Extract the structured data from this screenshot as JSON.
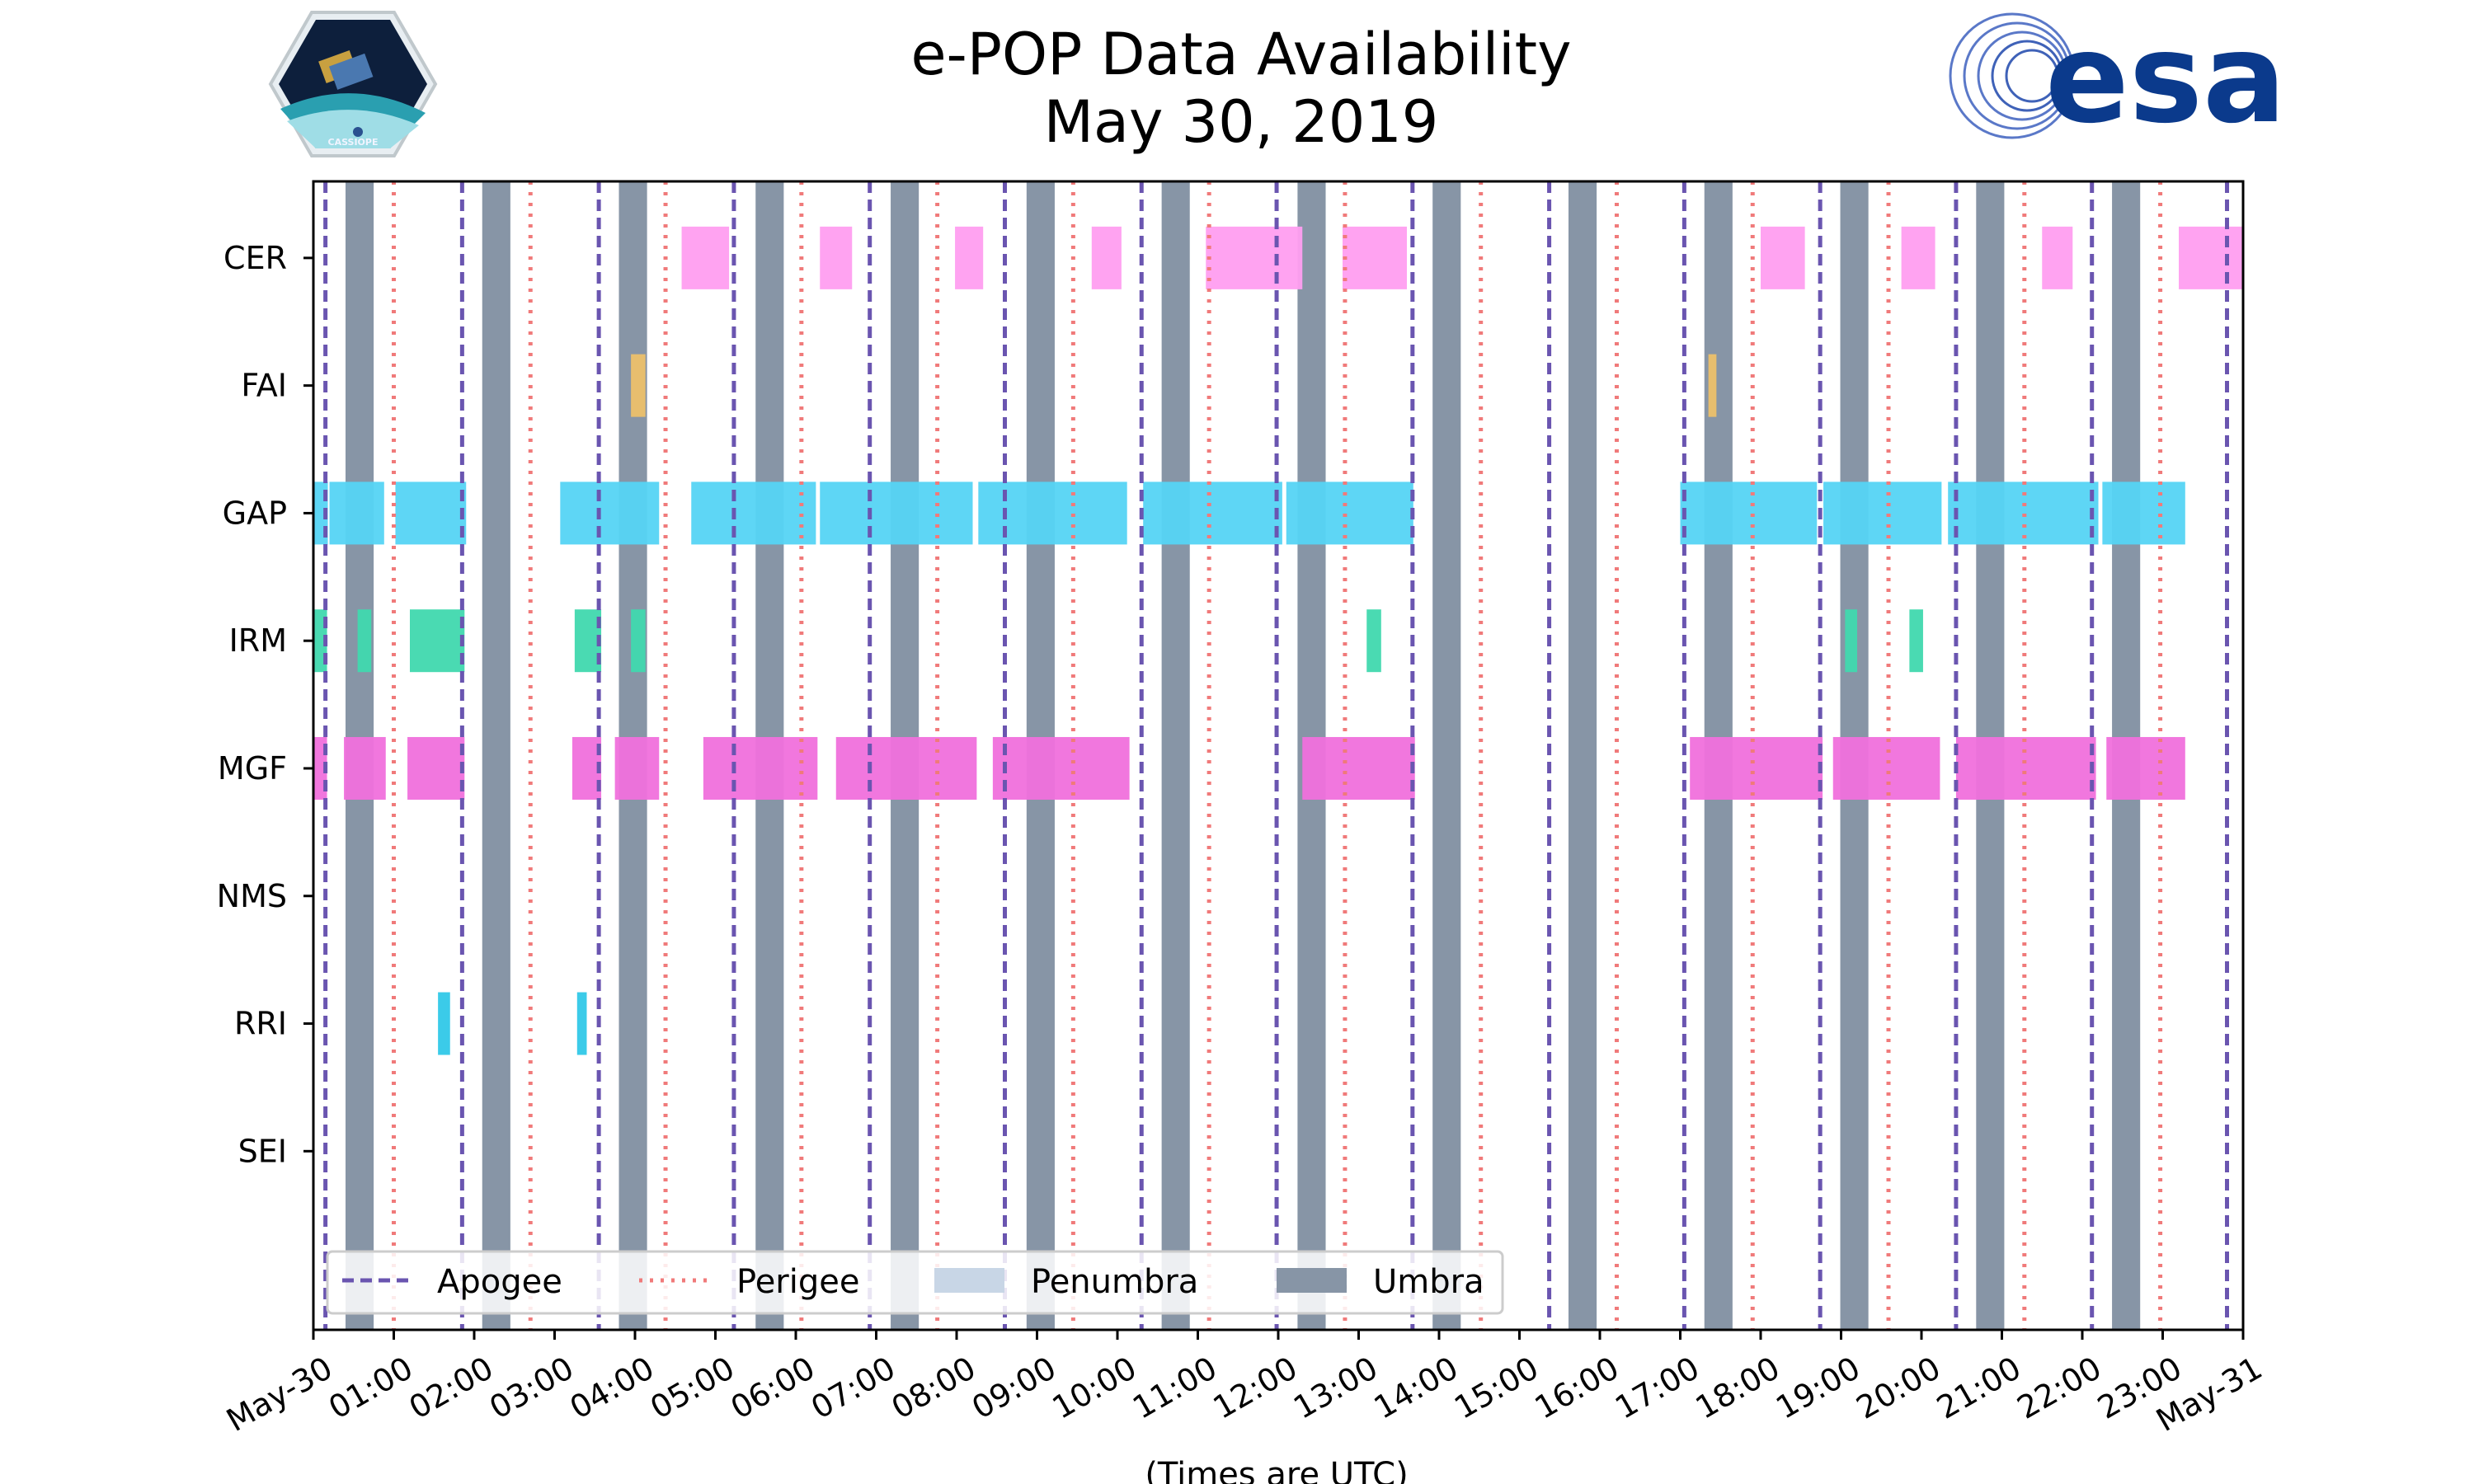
{
  "title": "e-POP Data Availability",
  "subtitle": "May 30, 2019",
  "logos": {
    "cassiope_text": "CASSIOPE",
    "esa_text": "esa"
  },
  "colors": {
    "apogee": "#6a55b0",
    "perigee": "#f07a7a",
    "penumbra": "#c8d6e6",
    "umbra": "#8795a6",
    "CER": "#ff9ef0",
    "FAI": "#ecc06a",
    "GAP": "#55d4f4",
    "IRM": "#40d8ae",
    "MGF": "#f070dc",
    "NMS": "#888888",
    "RRI": "#30c8e8",
    "SEI": "#888888",
    "esa_blue": "#0b3a8c",
    "esa_light": "#4a6fc0"
  },
  "chart_data": {
    "type": "timeline",
    "title": "e-POP Data Availability",
    "subtitle": "May 30, 2019",
    "xlabel": "(Times are UTC)",
    "ylabel": "",
    "xlim": [
      0,
      24
    ],
    "ylim": [
      -0.4,
      8.6
    ],
    "tick_labels": [
      "May-30",
      "01:00",
      "02:00",
      "03:00",
      "04:00",
      "05:00",
      "06:00",
      "07:00",
      "08:00",
      "09:00",
      "10:00",
      "11:00",
      "12:00",
      "13:00",
      "14:00",
      "15:00",
      "16:00",
      "17:00",
      "18:00",
      "19:00",
      "20:00",
      "21:00",
      "22:00",
      "23:00",
      "May-31"
    ],
    "instruments": [
      "CER",
      "FAI",
      "GAP",
      "IRM",
      "MGF",
      "NMS",
      "RRI",
      "SEI"
    ],
    "apogee_hours": [
      0.15,
      1.85,
      3.55,
      5.23,
      6.92,
      8.6,
      10.3,
      11.98,
      13.67,
      15.37,
      17.05,
      18.74,
      20.43,
      22.12,
      23.8
    ],
    "perigee_hours": [
      1.0,
      2.7,
      4.38,
      6.07,
      7.76,
      9.45,
      11.14,
      12.83,
      14.52,
      16.21,
      17.9,
      19.59,
      21.28,
      22.97
    ],
    "umbra_intervals": [
      [
        0.4,
        0.75
      ],
      [
        2.1,
        2.45
      ],
      [
        3.8,
        4.15
      ],
      [
        5.5,
        5.85
      ],
      [
        7.18,
        7.53
      ],
      [
        8.87,
        9.22
      ],
      [
        10.55,
        10.9
      ],
      [
        12.24,
        12.59
      ],
      [
        13.92,
        14.27
      ],
      [
        15.61,
        15.96
      ],
      [
        17.3,
        17.65
      ],
      [
        18.99,
        19.34
      ],
      [
        20.68,
        21.03
      ],
      [
        22.37,
        22.72
      ]
    ],
    "penumbra_intervals": [],
    "series": [
      {
        "name": "CER",
        "intervals": [
          [
            4.58,
            5.17
          ],
          [
            6.3,
            6.7
          ],
          [
            7.98,
            8.33
          ],
          [
            9.68,
            10.05
          ],
          [
            11.1,
            12.3
          ],
          [
            12.8,
            13.6
          ],
          [
            18.0,
            18.55
          ],
          [
            19.75,
            20.17
          ],
          [
            21.5,
            21.88
          ],
          [
            23.2,
            24.0
          ]
        ]
      },
      {
        "name": "FAI",
        "intervals": [
          [
            3.95,
            4.13
          ],
          [
            17.35,
            17.45
          ]
        ]
      },
      {
        "name": "GAP",
        "intervals": [
          [
            0.0,
            0.18
          ],
          [
            0.2,
            0.88
          ],
          [
            1.02,
            1.9
          ],
          [
            3.07,
            4.3
          ],
          [
            4.7,
            6.25
          ],
          [
            6.3,
            8.2
          ],
          [
            8.27,
            10.12
          ],
          [
            10.32,
            12.05
          ],
          [
            12.1,
            13.68
          ],
          [
            17.0,
            18.7
          ],
          [
            18.78,
            20.25
          ],
          [
            20.33,
            22.2
          ],
          [
            22.25,
            23.28
          ]
        ]
      },
      {
        "name": "IRM",
        "intervals": [
          [
            0.0,
            0.17
          ],
          [
            0.55,
            0.72
          ],
          [
            1.2,
            1.88
          ],
          [
            3.25,
            3.58
          ],
          [
            3.95,
            4.13
          ],
          [
            13.1,
            13.28
          ],
          [
            19.05,
            19.2
          ],
          [
            19.85,
            20.02
          ]
        ]
      },
      {
        "name": "MGF",
        "intervals": [
          [
            0.0,
            0.17
          ],
          [
            0.38,
            0.9
          ],
          [
            1.17,
            1.88
          ],
          [
            3.22,
            3.58
          ],
          [
            3.75,
            4.3
          ],
          [
            4.85,
            6.27
          ],
          [
            6.5,
            8.25
          ],
          [
            8.45,
            10.15
          ],
          [
            12.3,
            13.7
          ],
          [
            17.12,
            18.77
          ],
          [
            18.9,
            20.23
          ],
          [
            20.43,
            22.17
          ],
          [
            22.3,
            23.28
          ]
        ]
      },
      {
        "name": "NMS",
        "intervals": []
      },
      {
        "name": "RRI",
        "intervals": [
          [
            1.55,
            1.7
          ],
          [
            3.28,
            3.4
          ]
        ]
      },
      {
        "name": "SEI",
        "intervals": []
      }
    ],
    "legend": {
      "position": "lower-left",
      "entries": [
        "Apogee",
        "Perigee",
        "Penumbra",
        "Umbra"
      ]
    },
    "grid": false
  }
}
